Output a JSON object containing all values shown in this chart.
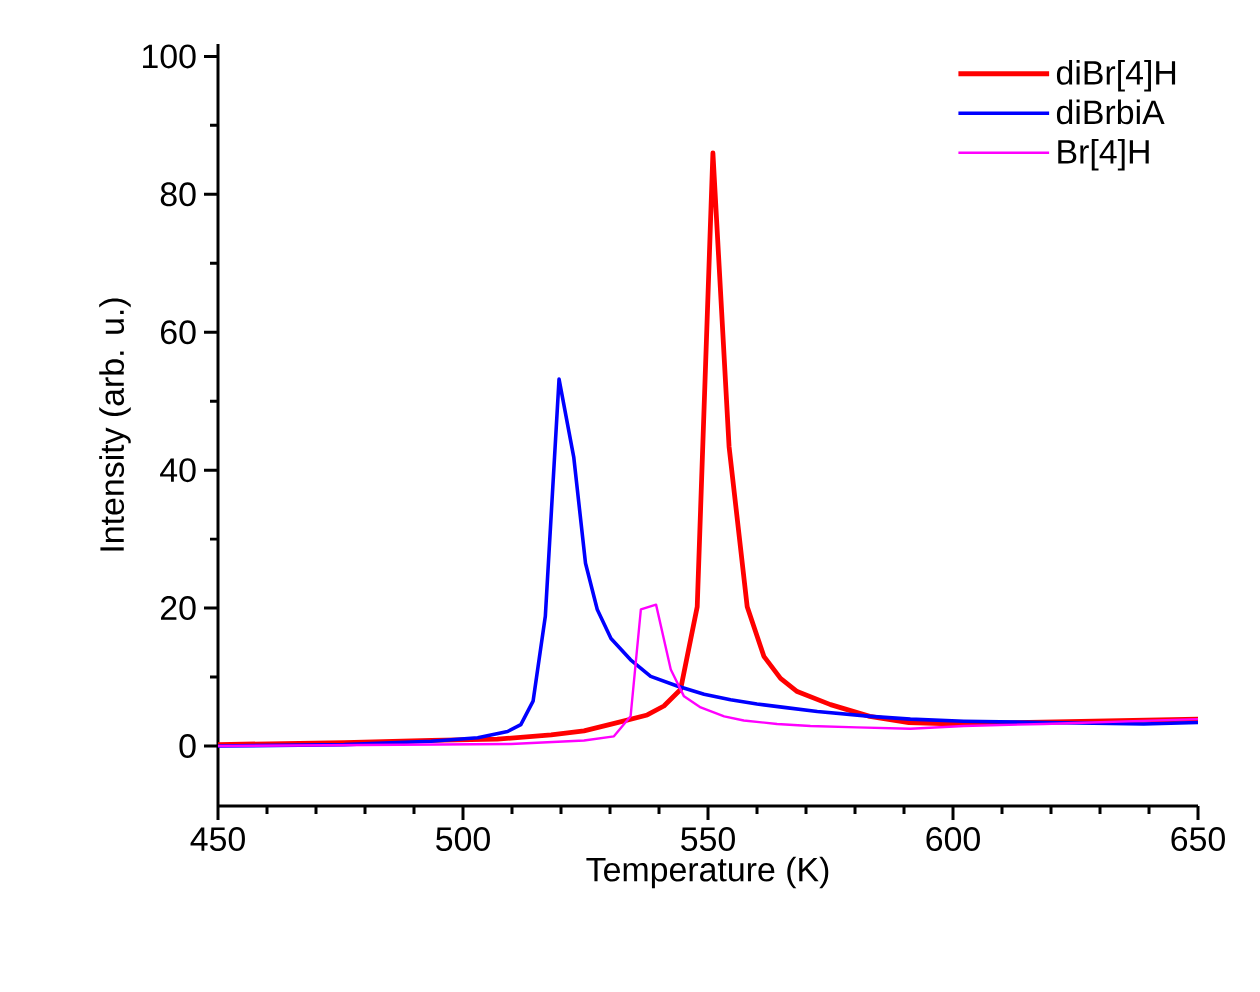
{
  "chart_data": {
    "type": "line",
    "xlabel": "Temperature (K)",
    "ylabel": "Intensity (arb. u.)",
    "xlim": [
      450,
      650
    ],
    "ylim": [
      -8.7,
      101.8
    ],
    "xticks": [
      450,
      500,
      550,
      600,
      650
    ],
    "yticks": [
      0,
      20,
      40,
      60,
      80,
      100
    ],
    "legend": "top right",
    "grid": false,
    "marker": "none",
    "line_style": "solid",
    "series": [
      {
        "name": "diBr[4]H",
        "color": "#ff0000",
        "x": [
          450,
          475.8,
          493.5,
          507,
          518,
          524.7,
          531.5,
          537.6,
          541,
          544.4,
          547.8,
          551,
          554.3,
          558,
          561.4,
          564.8,
          568.2,
          575,
          583,
          591,
          599.5,
          650
        ],
        "values": [
          0.2,
          0.5,
          0.8,
          1.0,
          1.6,
          2.2,
          3.4,
          4.5,
          5.8,
          8.2,
          20.2,
          86,
          43.4,
          20.2,
          13,
          9.8,
          7.9,
          6,
          4.3,
          3.4,
          3.2,
          3.9
        ]
      },
      {
        "name": "diBrbiA",
        "color": "#0000ff",
        "x": [
          450,
          475.8,
          493.5,
          503,
          509.1,
          511.8,
          514.3,
          516.8,
          519.6,
          522.6,
          525,
          527.4,
          530.2,
          534.2,
          538.3,
          543.7,
          549.2,
          554.6,
          560,
          565.5,
          572.3,
          583.2,
          591.3,
          602.2,
          618.5,
          638.9,
          650
        ],
        "values": [
          0,
          0.2,
          0.7,
          1.2,
          2.1,
          3.1,
          6.5,
          18.8,
          53.2,
          41.9,
          26.5,
          19.8,
          15.6,
          12.5,
          10.1,
          8.7,
          7.5,
          6.7,
          6.1,
          5.6,
          5.0,
          4.3,
          3.9,
          3.6,
          3.4,
          3.2,
          3.4
        ]
      },
      {
        "name": "Br[4]H",
        "color": "#ff00ff",
        "x": [
          450,
          509.8,
          524.7,
          530.8,
          534.2,
          536.3,
          539.4,
          542.4,
          545.1,
          548.5,
          553.3,
          557.3,
          564.1,
          570.9,
          580.4,
          591.3,
          602.2,
          618.5,
          650
        ],
        "values": [
          0,
          0.3,
          0.8,
          1.4,
          4.3,
          19.8,
          20.5,
          11.1,
          7.2,
          5.6,
          4.3,
          3.7,
          3.2,
          2.9,
          2.7,
          2.5,
          2.9,
          3.2,
          3.9
        ]
      }
    ]
  }
}
